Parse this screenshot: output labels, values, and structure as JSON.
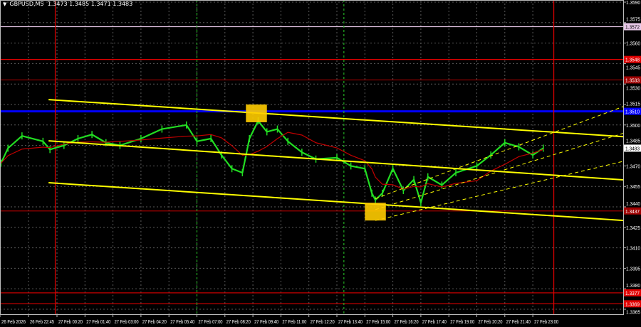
{
  "header": {
    "symbol": "GBPUSD,M5",
    "ohlc": "1.3473 1.3485 1.3471 1.3483"
  },
  "colors": {
    "background": "#000000",
    "grid": "#5a5a5a",
    "price": "#22dd22",
    "ma": "#c00000",
    "channel": "#ffff00",
    "rect": "#ffcc00"
  },
  "chart_data": {
    "type": "line",
    "symbol": "GBPUSD",
    "timeframe": "M5",
    "ylim": [
      1.3358,
      1.3592
    ],
    "y_ticks": [
      1.359,
      1.3575,
      1.356,
      1.3545,
      1.353,
      1.3515,
      1.35,
      1.3485,
      1.347,
      1.3455,
      1.344,
      1.3425,
      1.341,
      1.3395,
      1.338,
      1.3365
    ],
    "x_ticks": [
      "26 Feb 2026",
      "26 Feb 22:45",
      "27 Feb 00:20",
      "27 Feb 01:40",
      "27 Feb 03:00",
      "27 Feb 04:20",
      "27 Feb 05:40",
      "27 Feb 07:00",
      "27 Feb 08:20",
      "27 Feb 09:40",
      "27 Feb 11:00",
      "27 Feb 12:20",
      "27 Feb 13:40",
      "27 Feb 15:00",
      "27 Feb 16:20",
      "27 Feb 17:40",
      "27 Feb 19:00",
      "27 Feb 20:20",
      "27 Feb 21:40",
      "27 Feb 23:00"
    ],
    "grid": true,
    "current_price": 1.3483,
    "price_series": [
      [
        "26 Feb 21:40",
        1.3472
      ],
      [
        "26 Feb 22:00",
        1.3483
      ],
      [
        "26 Feb 22:40",
        1.3492
      ],
      [
        "26 Feb 23:40",
        1.3488
      ],
      [
        "27 Feb 00:00",
        1.3482
      ],
      [
        "27 Feb 00:40",
        1.3485
      ],
      [
        "27 Feb 01:20",
        1.349
      ],
      [
        "27 Feb 02:00",
        1.3493
      ],
      [
        "27 Feb 02:40",
        1.3487
      ],
      [
        "27 Feb 03:20",
        1.3485
      ],
      [
        "27 Feb 04:20",
        1.349
      ],
      [
        "27 Feb 05:20",
        1.3497
      ],
      [
        "27 Feb 06:30",
        1.35
      ],
      [
        "27 Feb 07:00",
        1.3488
      ],
      [
        "27 Feb 07:40",
        1.349
      ],
      [
        "27 Feb 08:10",
        1.3478
      ],
      [
        "27 Feb 08:40",
        1.3468
      ],
      [
        "27 Feb 09:10",
        1.3465
      ],
      [
        "27 Feb 09:30",
        1.349
      ],
      [
        "27 Feb 09:55",
        1.3503
      ],
      [
        "27 Feb 10:20",
        1.3495
      ],
      [
        "27 Feb 10:50",
        1.3497
      ],
      [
        "27 Feb 11:20",
        1.3488
      ],
      [
        "27 Feb 12:00",
        1.348
      ],
      [
        "27 Feb 12:40",
        1.3475
      ],
      [
        "27 Feb 13:40",
        1.3476
      ],
      [
        "27 Feb 14:20",
        1.347
      ],
      [
        "27 Feb 15:00",
        1.3468
      ],
      [
        "27 Feb 15:20",
        1.345
      ],
      [
        "27 Feb 15:30",
        1.3445
      ],
      [
        "27 Feb 15:50",
        1.345
      ],
      [
        "27 Feb 16:20",
        1.3468
      ],
      [
        "27 Feb 16:50",
        1.3452
      ],
      [
        "27 Feb 17:20",
        1.346
      ],
      [
        "27 Feb 17:40",
        1.3443
      ],
      [
        "27 Feb 18:00",
        1.3462
      ],
      [
        "27 Feb 18:40",
        1.3456
      ],
      [
        "27 Feb 19:20",
        1.3465
      ],
      [
        "27 Feb 20:20",
        1.347
      ],
      [
        "27 Feb 21:00",
        1.3478
      ],
      [
        "27 Feb 21:40",
        1.3487
      ],
      [
        "27 Feb 22:20",
        1.3484
      ],
      [
        "27 Feb 23:00",
        1.3478
      ],
      [
        "27 Feb 23:30",
        1.3483
      ]
    ],
    "levels": [
      {
        "price": 1.3572,
        "label": "1.3572",
        "color": "#e8c8e8",
        "text": "#000000"
      },
      {
        "price": 1.3548,
        "label": "1.3548",
        "color": "#e00000",
        "text": "#ffffff"
      },
      {
        "price": 1.3533,
        "label": "1.3533",
        "color": "#a00000",
        "text": "#ffffff"
      },
      {
        "price": 1.351,
        "label": "1.3510",
        "color": "#0000ff",
        "text": "#ffffff"
      },
      {
        "price": 1.3437,
        "label": "1.3437",
        "color": "#a00000",
        "text": "#ffffff"
      },
      {
        "price": 1.3377,
        "label": "1.3377",
        "color": "#e00000",
        "text": "#ffffff"
      },
      {
        "price": 1.3369,
        "label": "1.3369",
        "color": "#e00000",
        "text": "#ffffff"
      }
    ],
    "vertical_lines": [
      {
        "time": "27 Feb 00:15",
        "color": "#e00000",
        "style": "solid"
      },
      {
        "time": "27 Feb 07:00",
        "color": "#22aa22",
        "style": "dashed"
      },
      {
        "time": "27 Feb 14:00",
        "color": "#22aa22",
        "style": "dashed"
      },
      {
        "time": "28 Feb 00:00",
        "color": "#e00000",
        "style": "solid"
      }
    ],
    "trendlines": [
      {
        "from": [
          "26 Feb 23:56",
          1.35186
        ],
        "to": [
          "28 Feb 03:45",
          1.3491
        ],
        "style": "solid"
      },
      {
        "from": [
          "26 Feb 23:56",
          1.34884
        ],
        "to": [
          "28 Feb 03:45",
          1.34593
        ],
        "style": "solid"
      },
      {
        "from": [
          "26 Feb 23:56",
          1.34577
        ],
        "to": [
          "28 Feb 03:45",
          1.34296
        ],
        "style": "solid"
      },
      {
        "from": [
          "27 Feb 15:30",
          1.3446
        ],
        "to": [
          "28 Feb 03:45",
          1.3516
        ],
        "style": "dashed"
      },
      {
        "from": [
          "27 Feb 15:30",
          1.3438
        ],
        "to": [
          "28 Feb 03:45",
          1.3496
        ],
        "style": "dashed"
      },
      {
        "from": [
          "27 Feb 15:30",
          1.343
        ],
        "to": [
          "28 Feb 03:45",
          1.3475
        ],
        "style": "dashed"
      }
    ],
    "rectangles": [
      {
        "from": [
          "27 Feb 09:20",
          1.3515
        ],
        "to": [
          "27 Feb 10:20",
          1.3502
        ]
      },
      {
        "from": [
          "27 Feb 15:00",
          1.3443
        ],
        "to": [
          "27 Feb 16:00",
          1.343
        ]
      }
    ]
  }
}
